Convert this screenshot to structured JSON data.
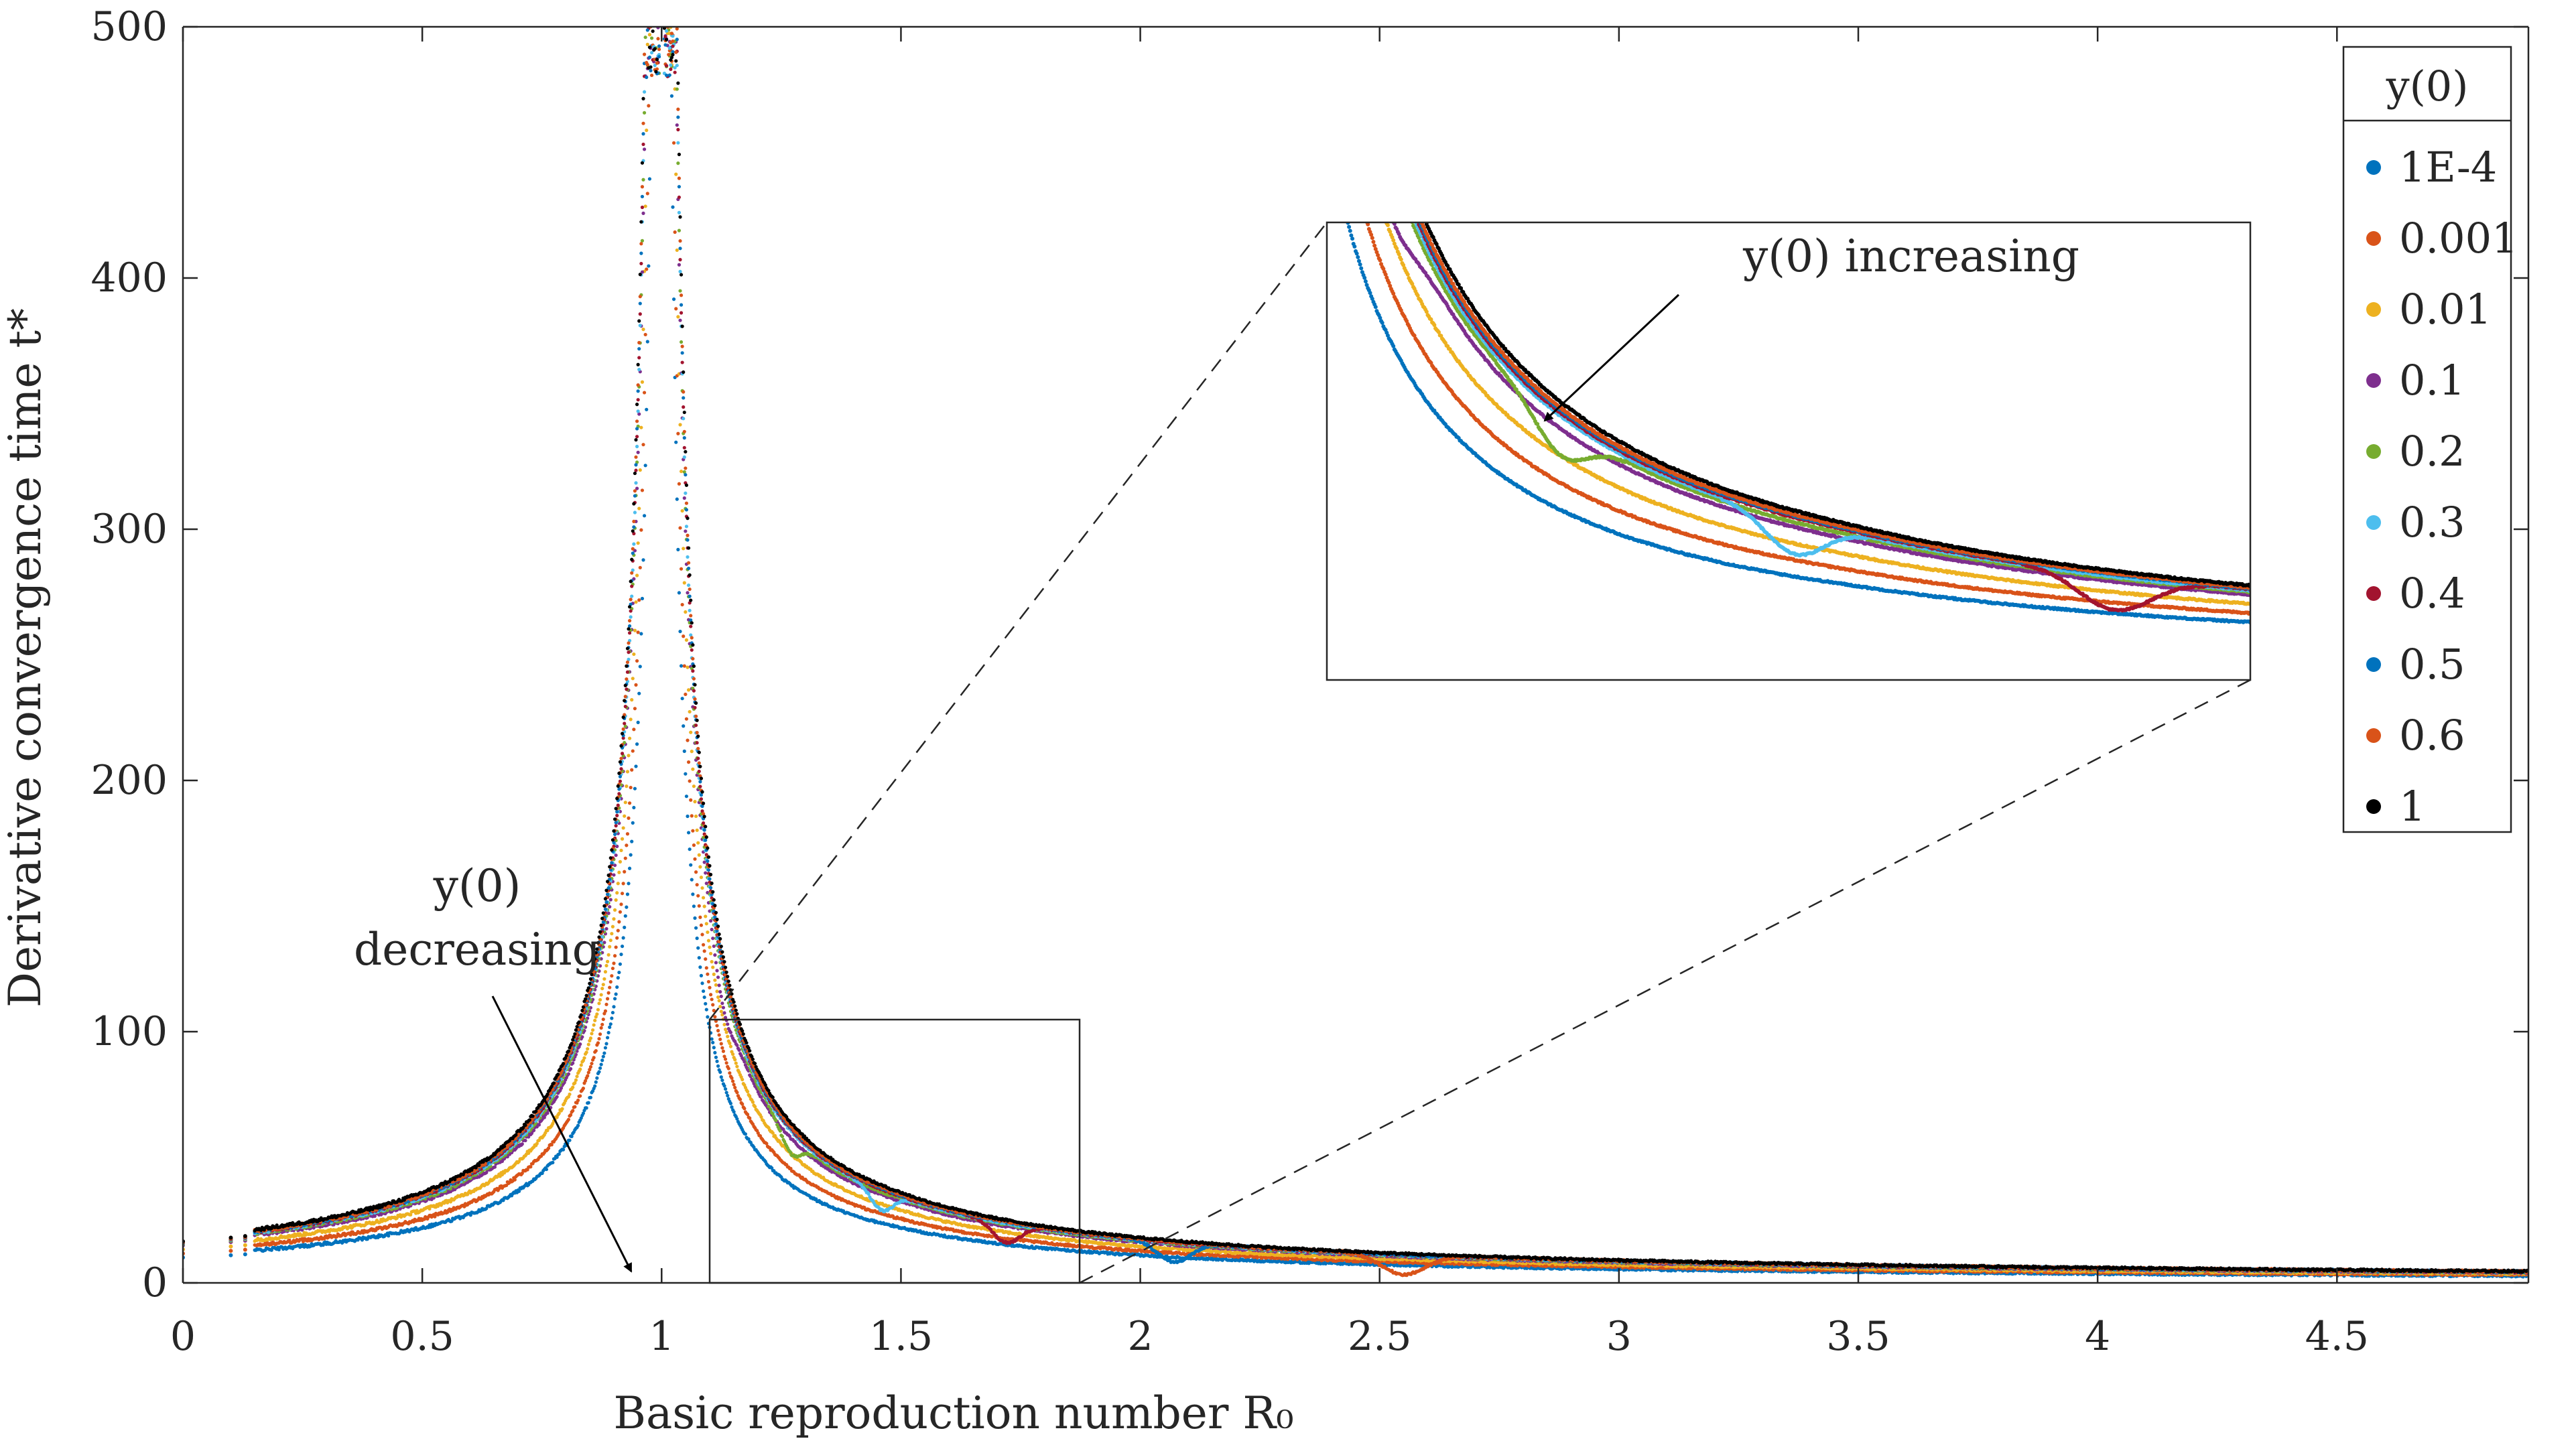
{
  "chart_data": {
    "type": "scatter",
    "xlabel": "Basic reproduction number R₀",
    "ylabel": "Derivative convergence time t*",
    "xlim": [
      0,
      4.9
    ],
    "ylim": [
      0,
      500
    ],
    "xticks": [
      "0",
      "0.5",
      "1",
      "1.5",
      "2",
      "2.5",
      "3",
      "3.5",
      "4",
      "4.5"
    ],
    "xtick_values": [
      0,
      0.5,
      1,
      1.5,
      2,
      2.5,
      3,
      3.5,
      4,
      4.5
    ],
    "yticks": [
      "0",
      "100",
      "200",
      "300",
      "400",
      "500"
    ],
    "ytick_values": [
      0,
      100,
      200,
      300,
      400,
      500
    ],
    "grid": false,
    "legend": {
      "title": "y(0)",
      "placement": "top-right",
      "entries": [
        "1E-4",
        "0.001",
        "0.01",
        "0.1",
        "0.2",
        "0.3",
        "0.4",
        "0.5",
        "0.6",
        "1"
      ]
    },
    "series": [
      {
        "name": "1E-4",
        "color": "#0072BD",
        "y0": 0.0001
      },
      {
        "name": "0.001",
        "color": "#D95319",
        "y0": 0.001
      },
      {
        "name": "0.01",
        "color": "#EDB120",
        "y0": 0.01
      },
      {
        "name": "0.1",
        "color": "#7E2F8E",
        "y0": 0.1
      },
      {
        "name": "0.2",
        "color": "#77AC30",
        "y0": 0.2
      },
      {
        "name": "0.3",
        "color": "#4DBEEE",
        "y0": 0.3
      },
      {
        "name": "0.4",
        "color": "#A2142F",
        "y0": 0.4
      },
      {
        "name": "0.5",
        "color": "#0072BD",
        "y0": 0.5
      },
      {
        "name": "0.6",
        "color": "#D95319",
        "y0": 0.6
      },
      {
        "name": "1",
        "color": "#000000",
        "y0": 1
      }
    ],
    "inset": {
      "xlim": [
        1.08,
        1.83
      ],
      "ylim": [
        0,
        105
      ]
    },
    "annotations": {
      "decreasing_top": "y(0)",
      "decreasing_bottom": "decreasing",
      "increasing": "y(0)  increasing"
    }
  }
}
